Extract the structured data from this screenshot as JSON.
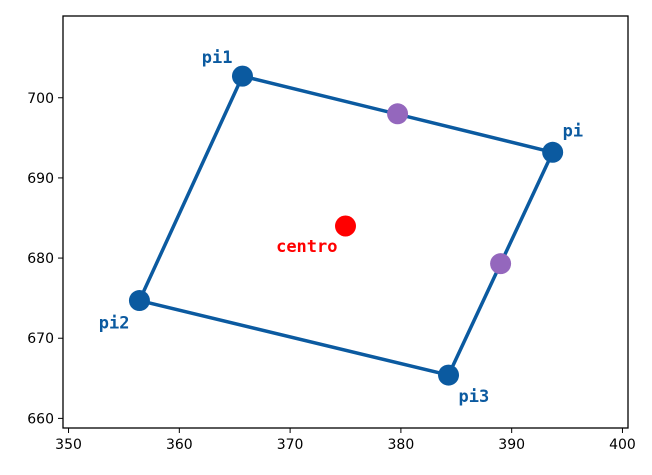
{
  "chart_data": {
    "type": "scatter",
    "title": "",
    "xlabel": "",
    "ylabel": "",
    "xlim": [
      349.5,
      400.5
    ],
    "ylim": [
      658.8,
      710.2
    ],
    "xticks": [
      350,
      360,
      370,
      380,
      390,
      400
    ],
    "yticks": [
      660,
      670,
      680,
      690,
      700
    ],
    "grid": false,
    "colors": {
      "polygon": "#0b5aa0",
      "vertex": "#0b5aa0",
      "center": "#ff0000",
      "midpoint": "#9467bd"
    },
    "polygon_order": [
      "pi",
      "pi1",
      "pi2",
      "pi3"
    ],
    "vertices": [
      {
        "label": "pi",
        "x": 393.7,
        "y": 693.2,
        "label_pos": "upper-right"
      },
      {
        "label": "pi1",
        "x": 365.7,
        "y": 702.7,
        "label_pos": "upper-left"
      },
      {
        "label": "pi2",
        "x": 356.4,
        "y": 674.7,
        "label_pos": "lower-left"
      },
      {
        "label": "pi3",
        "x": 384.3,
        "y": 665.4,
        "label_pos": "lower-right"
      }
    ],
    "center": {
      "label": "centro",
      "x": 375.0,
      "y": 684.0,
      "label_pos": "lower-left"
    },
    "midpoints": [
      {
        "x": 379.7,
        "y": 698.0
      },
      {
        "x": 389.0,
        "y": 679.3
      }
    ]
  }
}
